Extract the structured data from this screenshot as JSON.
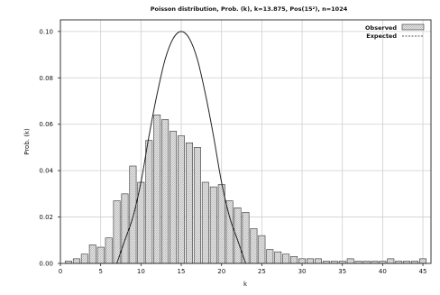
{
  "chart_data": {
    "type": "bar",
    "title": "Poisson distribution, Prob. (k), k=13.875, Pos(15²), n=1024",
    "xlabel": "k",
    "ylabel": "Prob. (k)",
    "xlim": [
      0,
      46
    ],
    "ylim": [
      0,
      0.105
    ],
    "x_ticks": [
      0,
      5,
      10,
      15,
      20,
      25,
      30,
      35,
      40,
      45
    ],
    "x_tick_labels": [
      "0",
      "5",
      "10",
      "15",
      "20",
      "25",
      "30",
      "35",
      "40",
      "45"
    ],
    "y_ticks": [
      0.0,
      0.02,
      0.04,
      0.06,
      0.08,
      0.1
    ],
    "y_tick_labels": [
      "0.00",
      "0.02",
      "0.04",
      "0.06",
      "0.08",
      "0.10"
    ],
    "grid": true,
    "legend_position": "top-right",
    "series": [
      {
        "name": "Observed",
        "kind": "bar",
        "x": [
          1,
          2,
          3,
          4,
          5,
          6,
          7,
          8,
          9,
          10,
          11,
          12,
          13,
          14,
          15,
          16,
          17,
          18,
          19,
          20,
          21,
          22,
          23,
          24,
          25,
          26,
          27,
          28,
          29,
          30,
          31,
          32,
          33,
          34,
          35,
          36,
          37,
          38,
          39,
          40,
          41,
          42,
          43,
          44,
          45
        ],
        "values": [
          0.001,
          0.002,
          0.004,
          0.008,
          0.007,
          0.011,
          0.027,
          0.03,
          0.042,
          0.035,
          0.053,
          0.064,
          0.062,
          0.057,
          0.055,
          0.052,
          0.05,
          0.035,
          0.033,
          0.034,
          0.027,
          0.024,
          0.022,
          0.015,
          0.012,
          0.006,
          0.005,
          0.004,
          0.003,
          0.002,
          0.002,
          0.002,
          0.001,
          0.001,
          0.001,
          0.002,
          0.001,
          0.001,
          0.001,
          0.001,
          0.002,
          0.001,
          0.001,
          0.001,
          0.002
        ]
      },
      {
        "name": "Expected",
        "kind": "line",
        "x": [
          7,
          8,
          9,
          10,
          11,
          12,
          13,
          14,
          15,
          16,
          17,
          18,
          19,
          20,
          21,
          22,
          23
        ],
        "values": [
          0.0,
          0.01,
          0.02,
          0.035,
          0.055,
          0.073,
          0.088,
          0.097,
          0.1,
          0.097,
          0.088,
          0.073,
          0.055,
          0.035,
          0.02,
          0.01,
          0.0
        ]
      }
    ],
    "colors": {
      "bar_fill": "#e6e6e6",
      "bar_edge": "#333333",
      "line": "#222222",
      "grid": "#cfcfcf"
    }
  }
}
